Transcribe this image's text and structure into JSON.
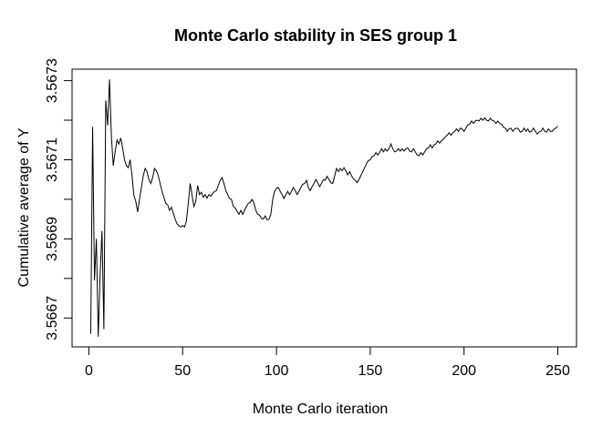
{
  "chart_data": {
    "type": "line",
    "title": "Monte Carlo stability in SES group 1",
    "xlabel": "Monte Carlo iteration",
    "ylabel": "Cumulative average of Y",
    "line_color": "#000000",
    "background_color": "#ffffff",
    "grid": false,
    "legend": false,
    "x_ticks": [
      0,
      50,
      100,
      150,
      200,
      250
    ],
    "x_tick_labels": [
      "0",
      "50",
      "100",
      "150",
      "200",
      "250"
    ],
    "y_ticks": [
      3.5667,
      3.5668,
      3.5669,
      3.567,
      3.5671,
      3.5672,
      3.5673
    ],
    "y_tick_labels": [
      "3.5667",
      "",
      "3.5669",
      "",
      "3.5671",
      "",
      "3.5673"
    ],
    "xlim": [
      -8.96,
      259.96
    ],
    "ylim": [
      3.566627,
      3.567329
    ],
    "x_start": 1,
    "values": [
      3.56666,
      3.567183,
      3.566795,
      3.5669,
      3.566653,
      3.56681,
      3.56692,
      3.566672,
      3.56725,
      3.567187,
      3.567303,
      3.56716,
      3.567085,
      3.56712,
      3.56715,
      3.56714,
      3.567155,
      3.56713,
      3.5671,
      3.567085,
      3.56708,
      3.5671,
      3.56706,
      3.56701,
      3.566995,
      3.566968,
      3.567,
      3.56703,
      3.56706,
      3.567078,
      3.56707,
      3.56705,
      3.56704,
      3.567055,
      3.567078,
      3.567072,
      3.56706,
      3.56704,
      3.56702,
      3.567005,
      3.56699,
      3.566986,
      3.566972,
      3.56698,
      3.566965,
      3.56695,
      3.566938,
      3.566933,
      3.56693,
      3.566934,
      3.56693,
      3.566945,
      3.56699,
      3.56704,
      3.56701,
      3.566982,
      3.566995,
      3.567035,
      3.567012,
      3.567018,
      3.567005,
      3.567012,
      3.567003,
      3.567012,
      3.567008,
      3.567015,
      3.56702,
      3.567022,
      3.567035,
      3.567048,
      3.567055,
      3.56704,
      3.567022,
      3.567012,
      3.567002,
      3.567,
      3.566982,
      3.566978,
      3.56697,
      3.566962,
      3.566972,
      3.566962,
      3.566972,
      3.566982,
      3.56699,
      3.566992,
      3.567,
      3.56699,
      3.566972,
      3.566962,
      3.56696,
      3.566952,
      3.56695,
      3.566958,
      3.566948,
      3.56695,
      3.566962,
      3.567,
      3.56702,
      3.567028,
      3.56703,
      3.56702,
      3.567012,
      3.567002,
      3.567012,
      3.56702,
      3.567012,
      3.56702,
      3.56703,
      3.567022,
      3.567012,
      3.56702,
      3.56703,
      3.567038,
      3.56704,
      3.567048,
      3.56703,
      3.567022,
      3.567032,
      3.56704,
      3.56705,
      3.567042,
      3.567032,
      3.56704,
      3.56705,
      3.567048,
      3.567058,
      3.56705,
      3.567042,
      3.56704,
      3.567058,
      3.567078,
      3.56707,
      3.567078,
      3.567072,
      3.56708,
      3.567072,
      3.567062,
      3.56707,
      3.56706,
      3.567052,
      3.567048,
      3.567042,
      3.56705,
      3.56706,
      3.56707,
      3.56708,
      3.56709,
      3.567098,
      3.5671,
      3.567108,
      3.56711,
      3.567118,
      3.567112,
      3.567118,
      3.567128,
      3.56712,
      3.567128,
      3.567122,
      3.567128,
      3.56714,
      3.567128,
      3.56712,
      3.567122,
      3.567128,
      3.567122,
      3.567128,
      3.567122,
      3.567128,
      3.56713,
      3.567122,
      3.56712,
      3.567128,
      3.56712,
      3.567112,
      3.56711,
      3.567118,
      3.567112,
      3.56712,
      3.567128,
      3.56713,
      3.567138,
      3.56713,
      3.567138,
      3.56714,
      3.567148,
      3.567142,
      3.567148,
      3.567152,
      3.567158,
      3.567162,
      3.567168,
      3.567162,
      3.567168,
      3.567172,
      3.567178,
      3.567172,
      3.56718,
      3.567178,
      3.567172,
      3.56718,
      3.567188,
      3.56719,
      3.567198,
      3.567192,
      3.567198,
      3.5672,
      3.567198,
      3.567205,
      3.5672,
      3.567206,
      3.5672,
      3.567198,
      3.567205,
      3.5672,
      3.567198,
      3.567192,
      3.567198,
      3.567192,
      3.56719,
      3.567182,
      3.56718,
      3.567172,
      3.567178,
      3.56718,
      3.567172,
      3.567178,
      3.56718,
      3.567178,
      3.56717,
      3.567172,
      3.56718,
      3.567172,
      3.567178,
      3.56717,
      3.567172,
      3.56718,
      3.567172,
      3.567165,
      3.56717,
      3.567172,
      3.56718,
      3.567172,
      3.56717,
      3.567178,
      3.567172,
      3.567172,
      3.567178,
      3.56718,
      3.567185
    ]
  }
}
